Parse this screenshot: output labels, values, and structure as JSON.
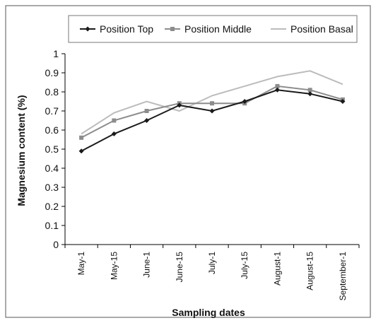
{
  "chart_data": {
    "type": "line",
    "title": "",
    "xlabel": "Sampling dates",
    "ylabel": "Magnesium content (%)",
    "ylim": [
      0,
      1
    ],
    "yticks": [
      0,
      0.1,
      0.2,
      0.3,
      0.4,
      0.5,
      0.6,
      0.7,
      0.8,
      0.9,
      1
    ],
    "ytick_labels": [
      "0",
      "0.1",
      "0.2",
      "0.3",
      "0.4",
      "0.5",
      "0.6",
      "0.7",
      "0.8",
      "0.9",
      "1"
    ],
    "grid": false,
    "legend_position": "top",
    "categories": [
      "May-1",
      "May-15",
      "June-1",
      "June-15",
      "July-1",
      "July-15",
      "August-1",
      "August-15",
      "September-1"
    ],
    "series": [
      {
        "name": "Position Top",
        "color": "#1a1a1a",
        "marker": "diamond",
        "values": [
          0.49,
          0.58,
          0.65,
          0.73,
          0.7,
          0.75,
          0.81,
          0.79,
          0.75
        ]
      },
      {
        "name": "Position Middle",
        "color": "#8c8c8c",
        "marker": "square",
        "values": [
          0.56,
          0.65,
          0.7,
          0.74,
          0.74,
          0.74,
          0.83,
          0.81,
          0.76
        ]
      },
      {
        "name": "Position Basal",
        "color": "#bcbcbc",
        "marker": "none",
        "values": [
          0.58,
          0.69,
          0.75,
          0.7,
          0.78,
          0.83,
          0.88,
          0.91,
          0.84
        ]
      }
    ]
  }
}
